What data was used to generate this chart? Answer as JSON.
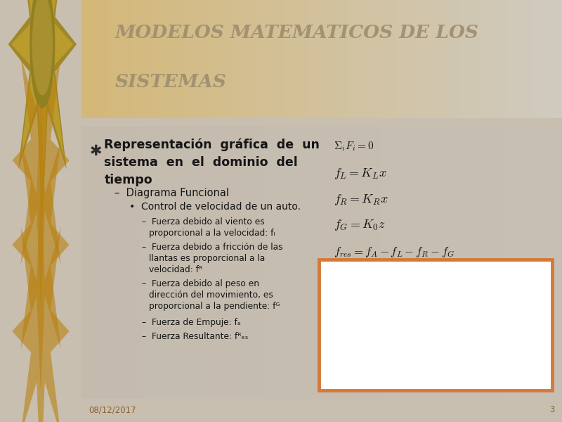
{
  "title_line1": "MODELOS MATEMATICOS DE LOS",
  "title_line2": "SISTEMAS",
  "title_color": "#A09070",
  "bg_left_color": "#E8B830",
  "header_bg_left": "#D4B878",
  "header_bg_right": "#D8CDB8",
  "content_bg": "#C8BFB0",
  "divider_dark": "#8B6A20",
  "divider_gold": "#C8A020",
  "date_text": "08/12/2017",
  "page_num": "3",
  "footer_color": "#8B6030",
  "orange_border": "#D4793A",
  "star_fill": "#C89820",
  "star_shadow": "#B88010"
}
